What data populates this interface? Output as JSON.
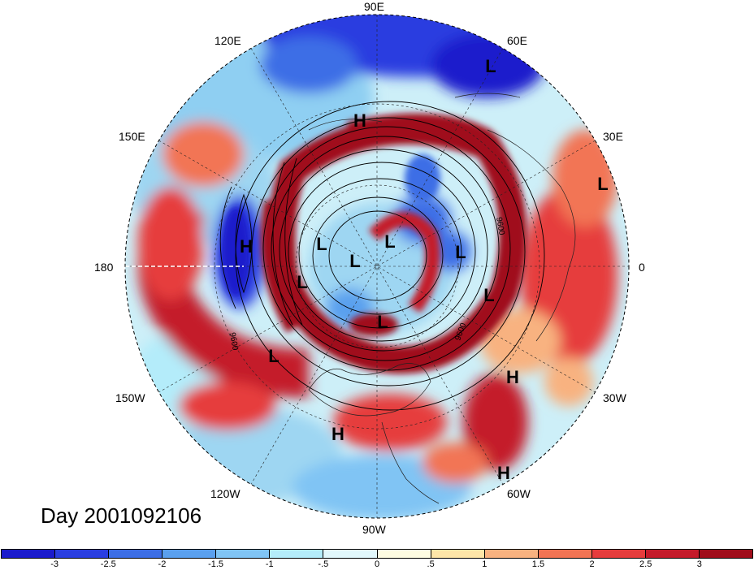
{
  "map": {
    "title": "Day 2001092106",
    "projection": "north-polar-stereographic",
    "longitude_labels": [
      "90E",
      "60E",
      "30E",
      "0",
      "30W",
      "60W",
      "90W",
      "120W",
      "150W",
      "180",
      "150E",
      "120E"
    ],
    "pressure_systems": [
      "H",
      "L",
      "L",
      "H",
      "L",
      "L",
      "L",
      "L",
      "L",
      "L",
      "L",
      "L",
      "H",
      "H",
      "H"
    ],
    "contour_labels": [
      "9600",
      "9600",
      "9600"
    ]
  },
  "colorbar": {
    "labels": [
      "-3",
      "-2.5",
      "-2",
      "-1.5",
      "-1",
      "-.5",
      "0",
      ".5",
      "1",
      "1.5",
      "2",
      "2.5",
      "3"
    ],
    "colors": [
      "#1a1acc",
      "#2a3ee0",
      "#3c6ee6",
      "#5aa0ee",
      "#80c4f4",
      "#b4ecfa",
      "#e2f8fc",
      "#fefce2",
      "#fee6a8",
      "#f8b280",
      "#f27454",
      "#e63c3c",
      "#c41a2a",
      "#a00c1a"
    ]
  }
}
